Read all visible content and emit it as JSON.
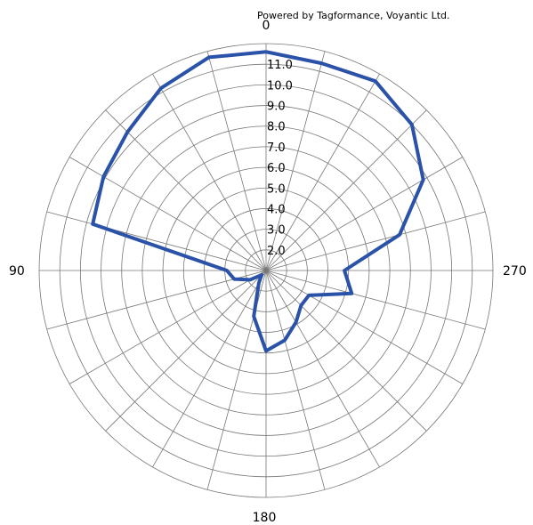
{
  "credit": "Powered by Tagformance, Voyantic Ltd.",
  "chart_data": {
    "type": "polar-line",
    "angle_labels": {
      "top": "0",
      "left": "90",
      "bottom": "180",
      "right": "270"
    },
    "angle_step_deg": 15,
    "r_min": 1.0,
    "r_max": 12.0,
    "ring_step": 1.0,
    "ring_labels": [
      "2.0",
      "3.0",
      "4.0",
      "5.0",
      "6.0",
      "7.0",
      "8.0",
      "9.0",
      "10.0",
      "11.0"
    ],
    "color": "#2a52a8",
    "series": [
      {
        "angles": [
          0,
          15,
          30,
          45,
          60,
          75,
          90,
          105,
          120,
          135,
          150,
          165,
          180,
          195,
          210,
          225,
          240,
          255,
          270,
          285,
          300,
          315,
          330,
          345,
          360
        ],
        "values": [
          11.6,
          11.7,
          11.2,
          10.5,
          10.1,
          9.7,
          2.9,
          2.6,
          1.9,
          1.3,
          1.7,
          3.3,
          4.9,
          4.5,
          3.9,
          3.4,
          3.4,
          5.3,
          4.8,
          7.7,
          9.8,
          11.0,
          11.6,
          11.4,
          11.6
        ]
      }
    ]
  }
}
